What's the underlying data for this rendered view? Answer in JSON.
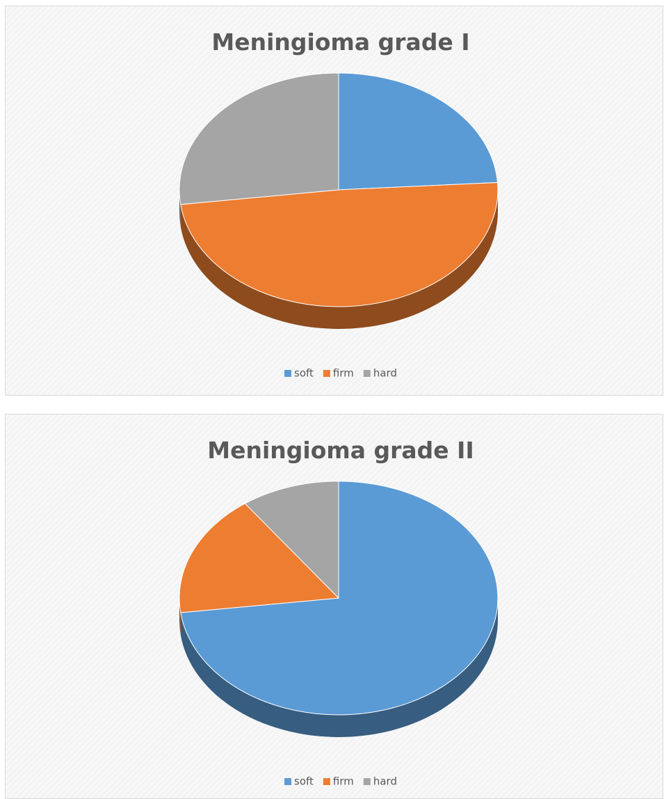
{
  "chart_data": [
    {
      "type": "pie",
      "title": "Meningioma grade I",
      "categories": [
        "soft",
        "firm",
        "hard"
      ],
      "values": [
        24,
        49,
        27
      ],
      "colors": [
        "#5b9bd5",
        "#ed7d31",
        "#a5a5a5"
      ],
      "legend": "bottom"
    },
    {
      "type": "pie",
      "title": "Meningioma grade II",
      "categories": [
        "soft",
        "firm",
        "hard"
      ],
      "values": [
        73,
        17,
        10
      ],
      "colors": [
        "#5b9bd5",
        "#ed7d31",
        "#a5a5a5"
      ],
      "legend": "bottom"
    }
  ]
}
